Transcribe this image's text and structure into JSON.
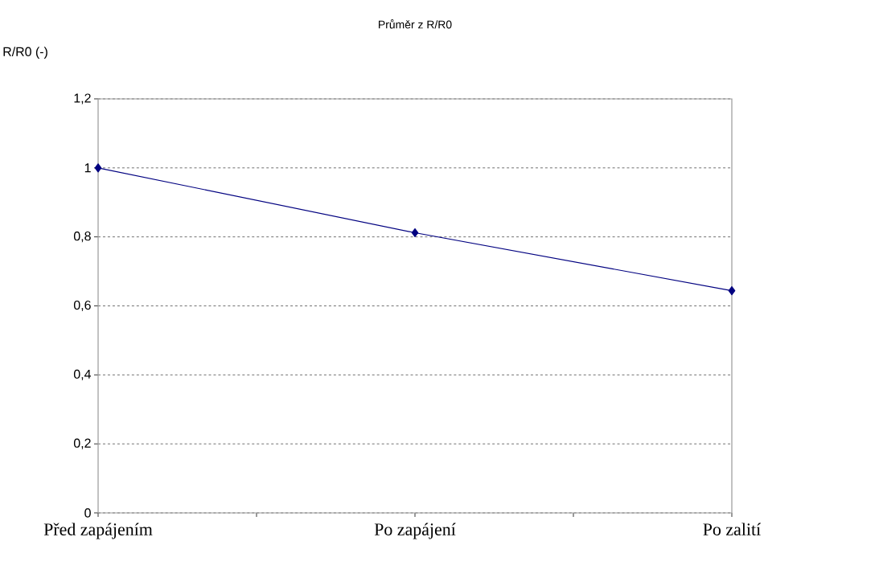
{
  "chart_data": {
    "type": "line",
    "title": "Průměr z R/R0",
    "ylabel": "R/R0 (-)",
    "categories": [
      "Před zapájením",
      "Po zapájení",
      "Po zalití"
    ],
    "series": [
      {
        "color": "#000080",
        "values": [
          1,
          0.812,
          0.644
        ]
      }
    ],
    "ylim": [
      0,
      1.2
    ],
    "yticks": [
      0,
      {
        "value": 0.2,
        "label": "0,2"
      },
      {
        "value": 0.4,
        "label": "0,4"
      },
      {
        "value": 0.6,
        "label": "0,6"
      },
      {
        "value": 0.8,
        "label": "0,8"
      },
      1,
      {
        "value": 1.2,
        "label": "1,2"
      }
    ],
    "grid": "y",
    "marker": "diamond",
    "line_style": "solid"
  }
}
